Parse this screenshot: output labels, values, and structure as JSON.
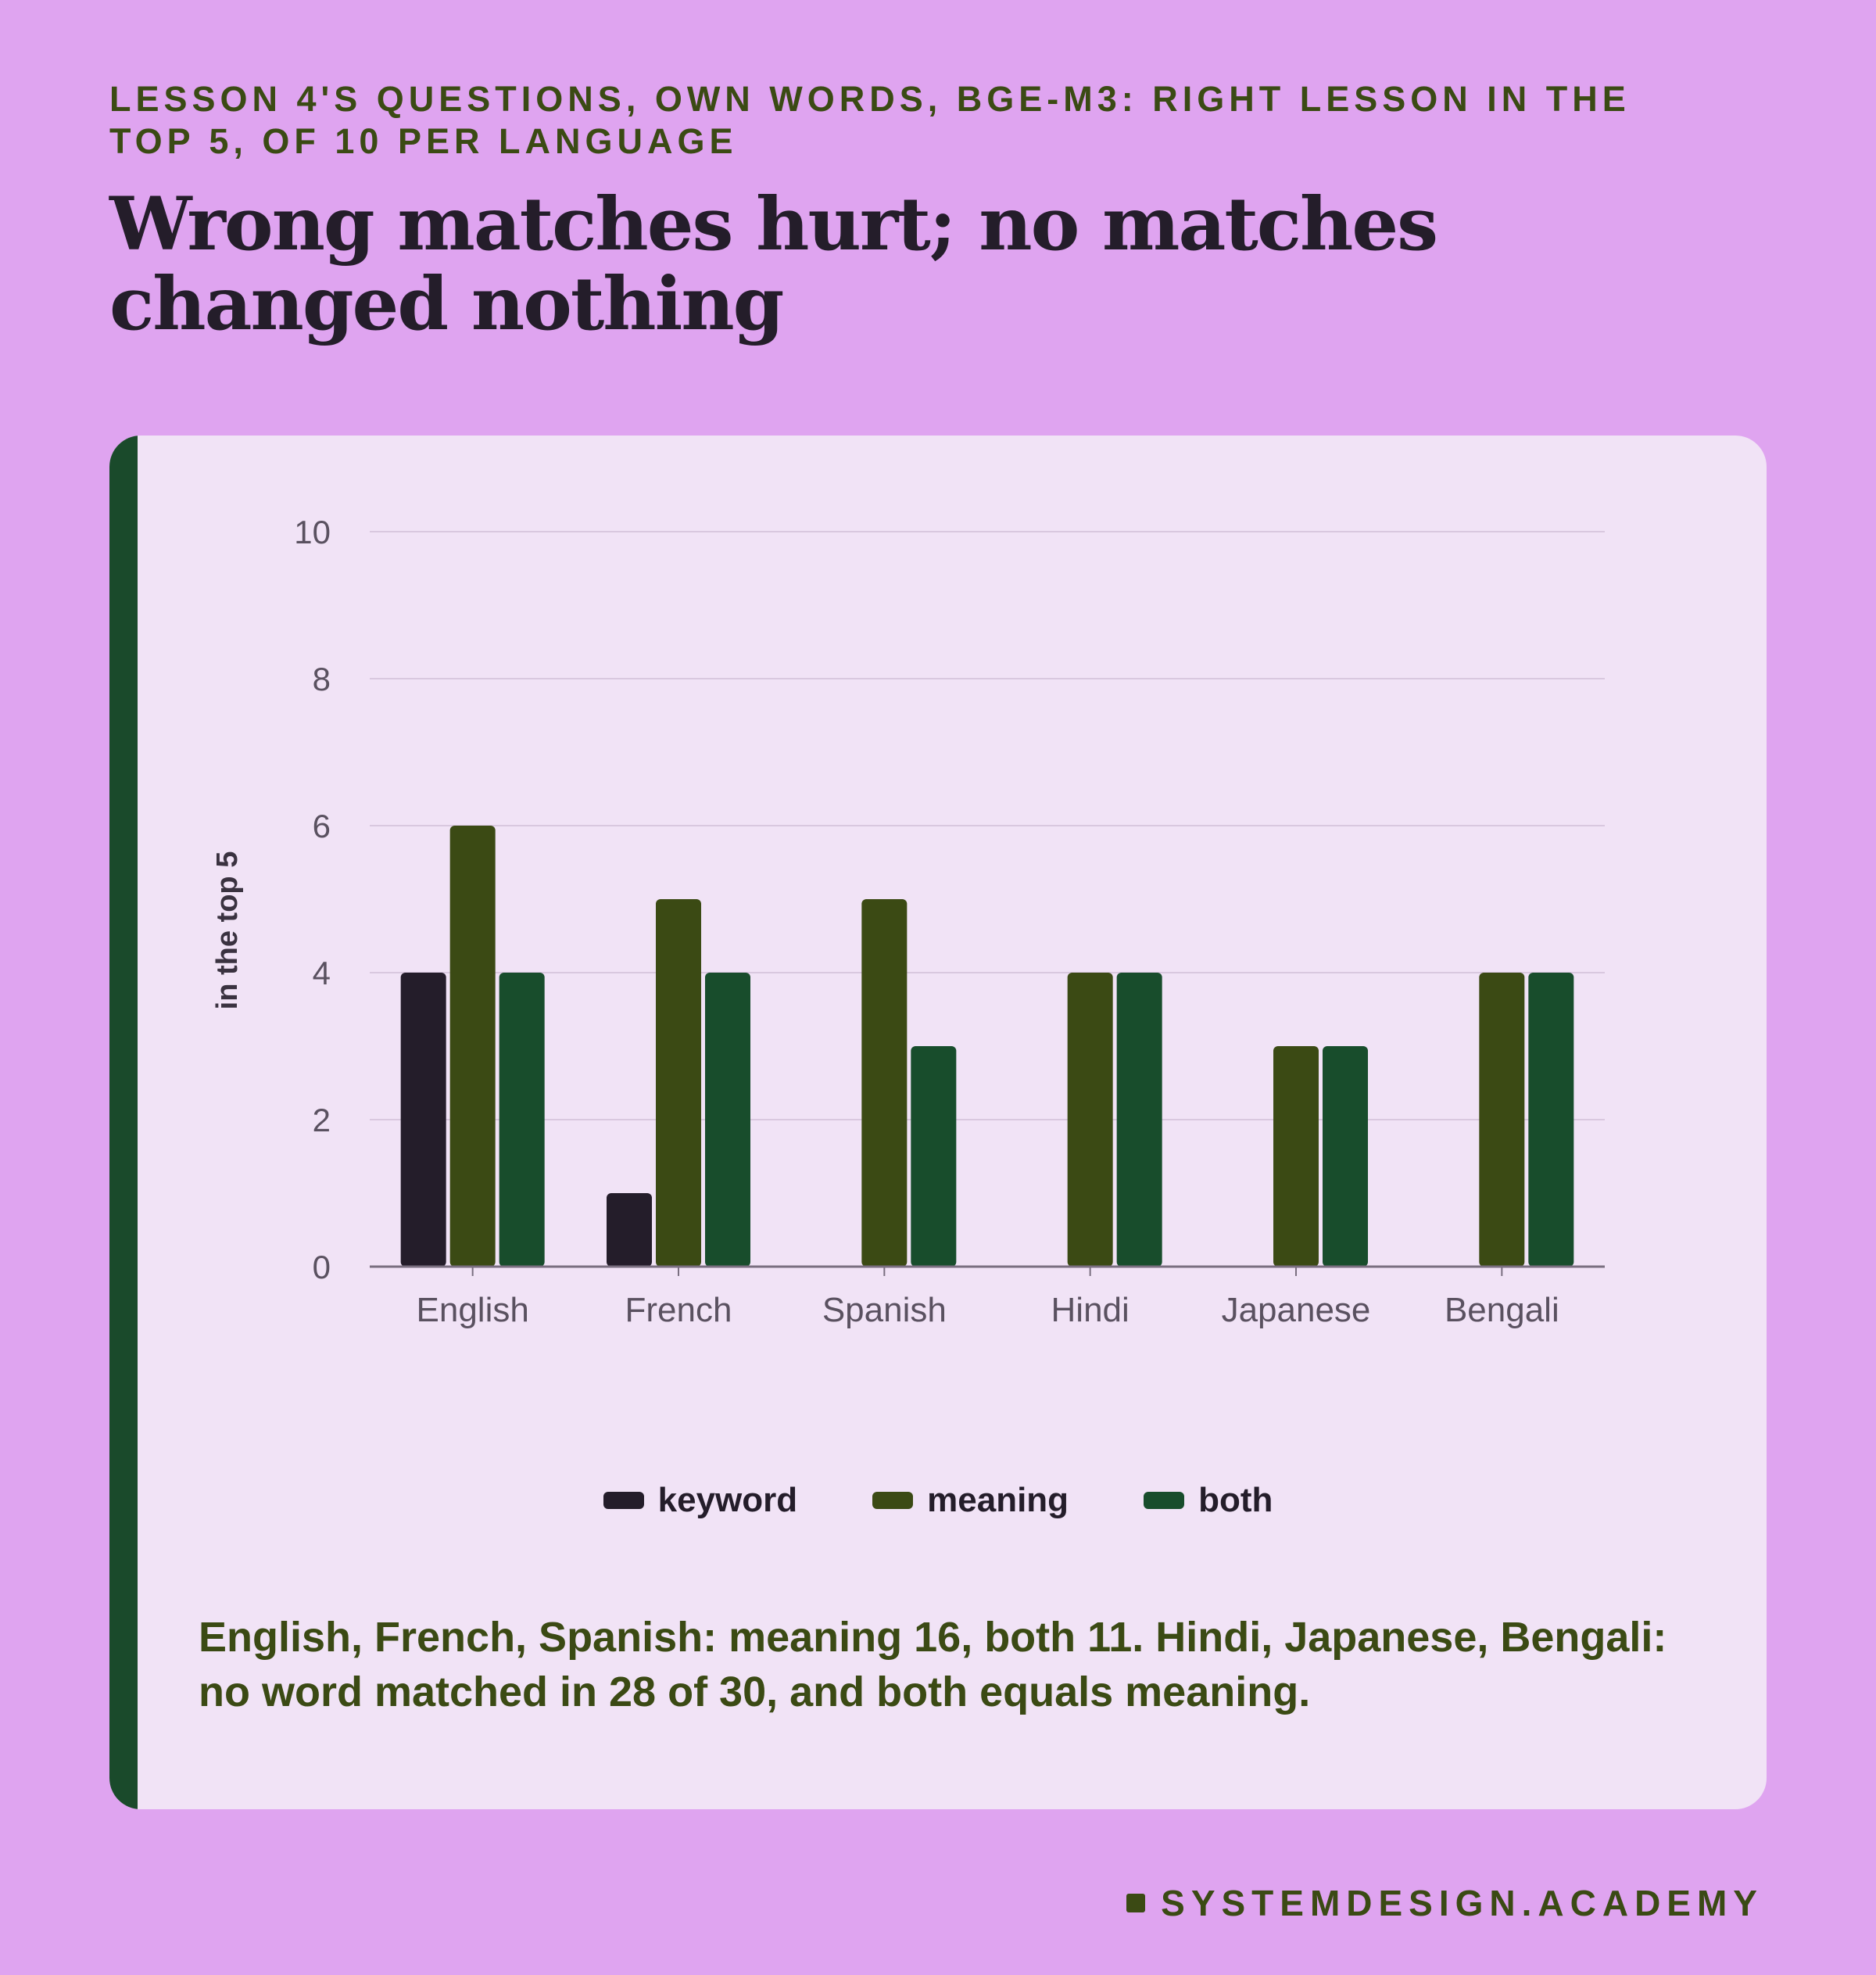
{
  "header": {
    "eyebrow": "LESSON 4'S QUESTIONS, OWN WORDS, BGE-M3: RIGHT LESSON IN THE TOP 5, OF 10 PER LANGUAGE",
    "title": "Wrong matches hurt; no matches changed nothing"
  },
  "chart_data": {
    "type": "bar",
    "title": "",
    "xlabel": "",
    "ylabel": "in the top 5",
    "ylim": [
      0,
      10
    ],
    "yticks": [
      "0",
      "2",
      "4",
      "6",
      "8",
      "10"
    ],
    "grid": true,
    "legend_position": "bottom",
    "categories": [
      "English",
      "French",
      "Spanish",
      "Hindi",
      "Japanese",
      "Bengali"
    ],
    "series": [
      {
        "name": "keyword",
        "color": "#241d2a",
        "values": [
          4,
          1,
          0,
          0,
          0,
          0
        ]
      },
      {
        "name": "meaning",
        "color": "#3b4a14",
        "values": [
          6,
          5,
          5,
          4,
          3,
          4
        ]
      },
      {
        "name": "both",
        "color": "#184d2c",
        "values": [
          4,
          4,
          3,
          4,
          3,
          4
        ]
      }
    ]
  },
  "note": "English, French, Spanish: meaning 16, both 11. Hindi, Japanese, Bengali: no word matched in 28 of 30, and both equals meaning.",
  "footer": {
    "brand": "SYSTEMDESIGN.ACADEMY"
  },
  "colors": {
    "background": "#dfa4f0",
    "card": "#f1e3f6",
    "accent": "#1a4a2b",
    "text_dark": "#241d2a",
    "text_olive": "#3b4a14"
  }
}
